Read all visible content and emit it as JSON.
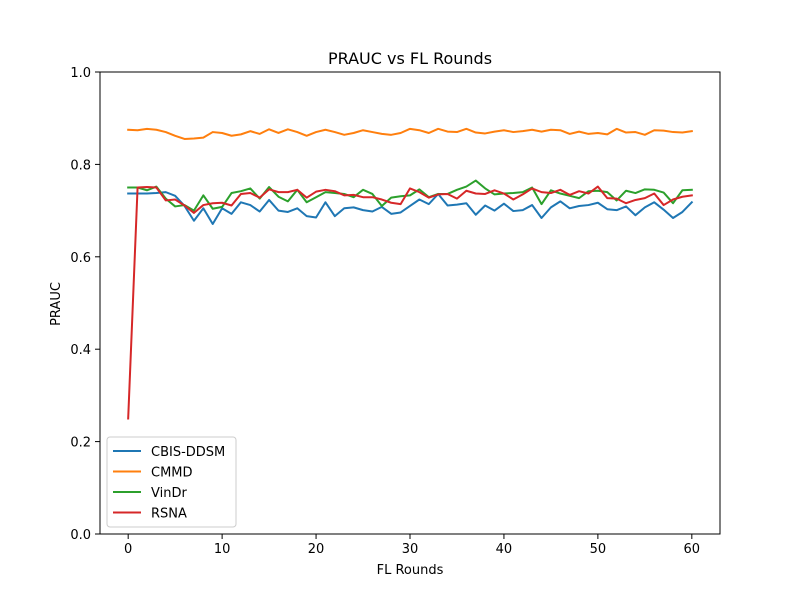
{
  "chart_data": {
    "type": "line",
    "title": "PRAUC vs FL Rounds",
    "xlabel": "FL Rounds",
    "ylabel": "PRAUC",
    "xlim": [
      -3,
      63
    ],
    "ylim": [
      0.0,
      1.0
    ],
    "xticks": [
      "0",
      "10",
      "20",
      "30",
      "40",
      "50",
      "60"
    ],
    "yticks": [
      "0.0",
      "0.2",
      "0.4",
      "0.6",
      "0.8",
      "1.0"
    ],
    "grid": false,
    "legend_position": "lower-left",
    "x": [
      0,
      1,
      2,
      3,
      4,
      5,
      6,
      7,
      8,
      9,
      10,
      11,
      12,
      13,
      14,
      15,
      16,
      17,
      18,
      19,
      20,
      21,
      22,
      23,
      24,
      25,
      26,
      27,
      28,
      29,
      30,
      31,
      32,
      33,
      34,
      35,
      36,
      37,
      38,
      39,
      40,
      41,
      42,
      43,
      44,
      45,
      46,
      47,
      48,
      49,
      50,
      51,
      52,
      53,
      54,
      55,
      56,
      57,
      58,
      59,
      60
    ],
    "series": [
      {
        "name": "CBIS-DDSM",
        "color": "#1f77b4",
        "values": [
          0.737,
          0.737,
          0.737,
          0.738,
          0.74,
          0.732,
          0.71,
          0.678,
          0.705,
          0.671,
          0.705,
          0.693,
          0.718,
          0.712,
          0.698,
          0.723,
          0.7,
          0.697,
          0.705,
          0.688,
          0.685,
          0.718,
          0.688,
          0.705,
          0.707,
          0.701,
          0.698,
          0.708,
          0.693,
          0.696,
          0.71,
          0.724,
          0.714,
          0.736,
          0.711,
          0.713,
          0.716,
          0.691,
          0.711,
          0.7,
          0.715,
          0.699,
          0.701,
          0.712,
          0.684,
          0.707,
          0.72,
          0.705,
          0.71,
          0.712,
          0.717,
          0.703,
          0.701,
          0.709,
          0.69,
          0.707,
          0.718,
          0.702,
          0.684,
          0.697,
          0.718
        ]
      },
      {
        "name": "CMMD",
        "color": "#ff7f0e",
        "values": [
          0.875,
          0.874,
          0.877,
          0.875,
          0.87,
          0.862,
          0.855,
          0.856,
          0.858,
          0.87,
          0.868,
          0.862,
          0.865,
          0.872,
          0.866,
          0.876,
          0.868,
          0.876,
          0.87,
          0.862,
          0.87,
          0.875,
          0.87,
          0.864,
          0.868,
          0.874,
          0.87,
          0.866,
          0.864,
          0.868,
          0.877,
          0.874,
          0.868,
          0.877,
          0.871,
          0.87,
          0.877,
          0.869,
          0.867,
          0.871,
          0.874,
          0.87,
          0.872,
          0.875,
          0.871,
          0.875,
          0.874,
          0.866,
          0.871,
          0.866,
          0.868,
          0.865,
          0.877,
          0.869,
          0.87,
          0.864,
          0.874,
          0.873,
          0.87,
          0.869,
          0.872
        ]
      },
      {
        "name": "VinDr",
        "color": "#2ca02c",
        "values": [
          0.75,
          0.75,
          0.744,
          0.752,
          0.726,
          0.709,
          0.712,
          0.7,
          0.733,
          0.704,
          0.708,
          0.738,
          0.742,
          0.748,
          0.726,
          0.751,
          0.73,
          0.72,
          0.745,
          0.718,
          0.729,
          0.74,
          0.738,
          0.736,
          0.729,
          0.745,
          0.736,
          0.71,
          0.728,
          0.731,
          0.733,
          0.746,
          0.729,
          0.736,
          0.736,
          0.745,
          0.752,
          0.765,
          0.748,
          0.735,
          0.737,
          0.738,
          0.74,
          0.75,
          0.714,
          0.744,
          0.737,
          0.732,
          0.727,
          0.742,
          0.743,
          0.74,
          0.722,
          0.743,
          0.738,
          0.746,
          0.745,
          0.739,
          0.716,
          0.744,
          0.745
        ]
      },
      {
        "name": "RSNA",
        "color": "#d62728",
        "values": [
          0.25,
          0.75,
          0.751,
          0.75,
          0.722,
          0.724,
          0.711,
          0.695,
          0.712,
          0.716,
          0.717,
          0.711,
          0.736,
          0.738,
          0.728,
          0.746,
          0.74,
          0.74,
          0.745,
          0.728,
          0.741,
          0.745,
          0.742,
          0.733,
          0.734,
          0.729,
          0.729,
          0.724,
          0.717,
          0.714,
          0.748,
          0.74,
          0.728,
          0.735,
          0.736,
          0.726,
          0.743,
          0.737,
          0.736,
          0.744,
          0.737,
          0.724,
          0.735,
          0.748,
          0.74,
          0.738,
          0.745,
          0.734,
          0.742,
          0.737,
          0.752,
          0.727,
          0.726,
          0.716,
          0.723,
          0.727,
          0.737,
          0.712,
          0.724,
          0.73,
          0.733
        ]
      }
    ]
  }
}
